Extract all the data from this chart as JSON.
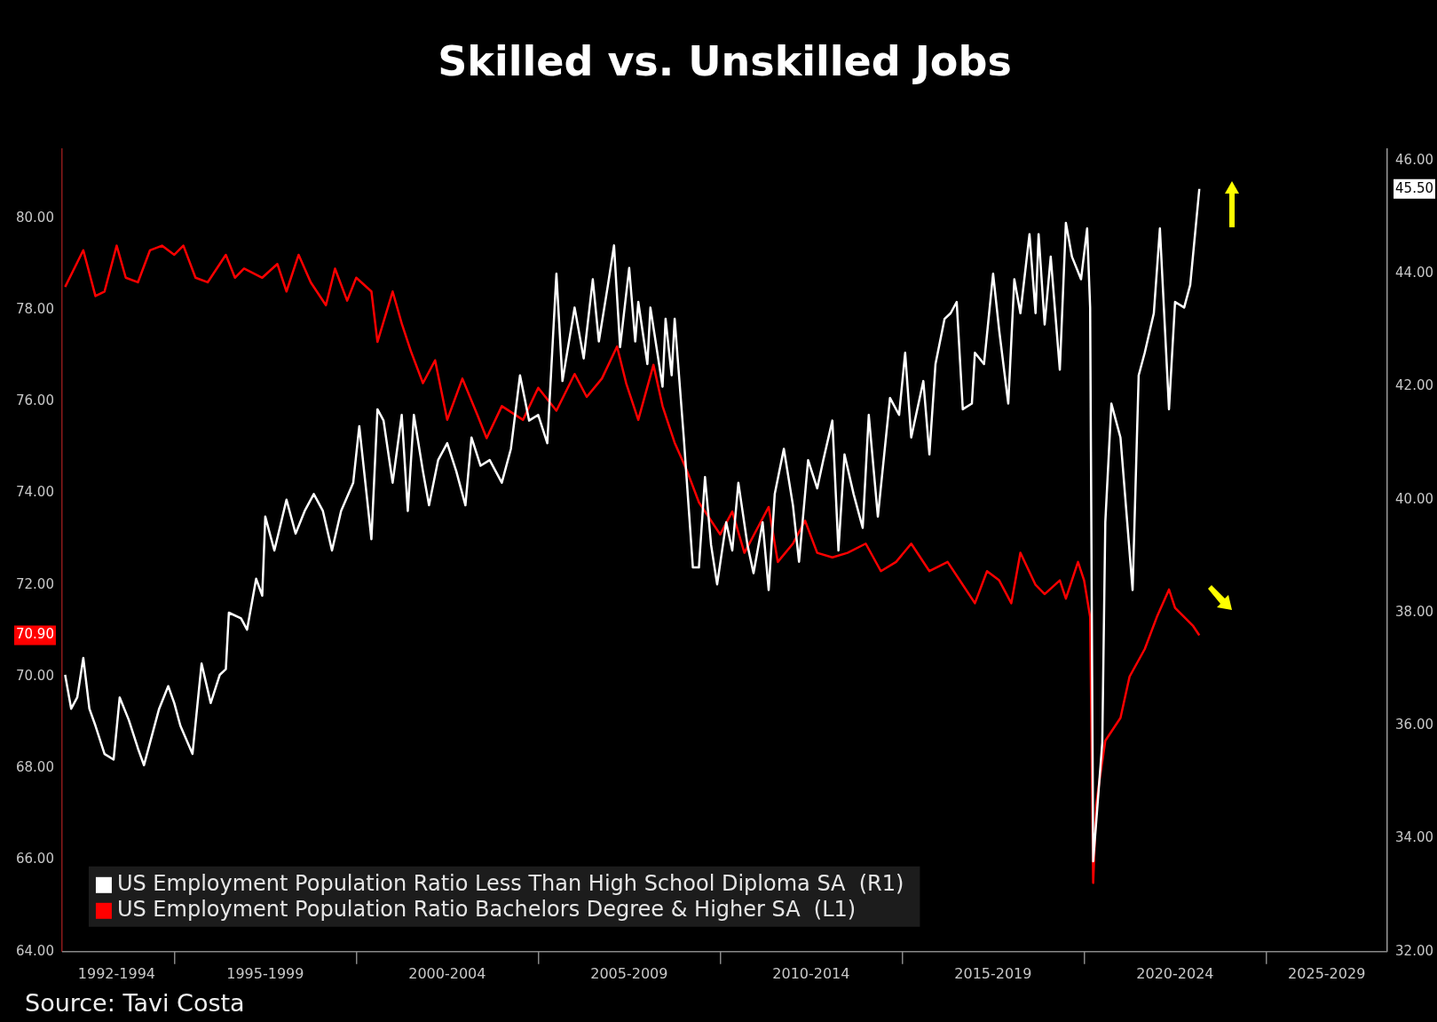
{
  "chart_data": {
    "type": "line",
    "title": "Skilled vs. Unskilled Jobs",
    "annotations": [
      "Source: Tavi Costa"
    ],
    "legend": "bottom left",
    "xlim": [
      "1991-12",
      "2028-05"
    ],
    "xticks": [
      {
        "value": "1993-06",
        "label": "1992-1994"
      },
      {
        "value": "1995-01",
        "label": null
      },
      {
        "value": "1997-07",
        "label": "1995-1999"
      },
      {
        "value": "2000-01",
        "label": null
      },
      {
        "value": "2002-07",
        "label": "2000-2004"
      },
      {
        "value": "2005-01",
        "label": null
      },
      {
        "value": "2007-07",
        "label": "2005-2009"
      },
      {
        "value": "2010-01",
        "label": null
      },
      {
        "value": "2012-07",
        "label": "2010-2014"
      },
      {
        "value": "2015-01",
        "label": null
      },
      {
        "value": "2017-07",
        "label": "2015-2019"
      },
      {
        "value": "2020-01",
        "label": null
      },
      {
        "value": "2022-07",
        "label": "2020-2024"
      },
      {
        "value": "2025-01",
        "label": null
      },
      {
        "value": "2026-09",
        "label": "2025-2029"
      }
    ],
    "ylim": [
      64,
      81.5
    ],
    "yticks": [
      {
        "value": 64,
        "label": "64.00"
      },
      {
        "value": 66,
        "label": "66.00"
      },
      {
        "value": 68,
        "label": "68.00"
      },
      {
        "value": 70,
        "label": "70.00"
      },
      {
        "value": 70.9,
        "label": "70.90"
      },
      {
        "value": 72,
        "label": "72.00"
      },
      {
        "value": 74,
        "label": "74.00"
      },
      {
        "value": 76,
        "label": "76.00"
      },
      {
        "value": 78,
        "label": "78.00"
      },
      {
        "value": 80,
        "label": "80.00"
      }
    ],
    "y2lim": [
      32,
      46.2
    ],
    "y2ticks": [
      {
        "value": 32,
        "label": "32.00"
      },
      {
        "value": 34,
        "label": "34.00"
      },
      {
        "value": 36,
        "label": "36.00"
      },
      {
        "value": 38,
        "label": "38.00"
      },
      {
        "value": 40,
        "label": "40.00"
      },
      {
        "value": 42,
        "label": "42.00"
      },
      {
        "value": 44,
        "label": "44.00"
      },
      {
        "value": 45.5,
        "label": "45.50"
      },
      {
        "value": 46,
        "label": "46.00"
      }
    ],
    "series": [
      {
        "name": "US Employment Population Ratio Less Than High School Diploma SA  (R1)",
        "color": "#ffffff",
        "axis": "y2",
        "x": [
          "1992-01",
          "1992-03",
          "1992-05",
          "1992-07",
          "1992-09",
          "1992-11",
          "1993-02",
          "1993-05",
          "1993-07",
          "1993-10",
          "1994-01",
          "1994-03",
          "1994-05",
          "1994-08",
          "1994-11",
          "1995-01",
          "1995-03",
          "1995-07",
          "1995-10",
          "1996-01",
          "1996-04",
          "1996-06",
          "1996-07",
          "1996-11",
          "1997-01",
          "1997-04",
          "1997-06",
          "1997-07",
          "1997-10",
          "1998-02",
          "1998-05",
          "1998-08",
          "1998-11",
          "1999-02",
          "1999-05",
          "1999-08",
          "1999-12",
          "2000-02",
          "2000-04",
          "2000-06",
          "2000-08",
          "2000-10",
          "2001-01",
          "2001-04",
          "2001-06",
          "2001-08",
          "2001-11",
          "2002-01",
          "2002-04",
          "2002-07",
          "2002-10",
          "2003-01",
          "2003-03",
          "2003-06",
          "2003-09",
          "2004-01",
          "2004-04",
          "2004-07",
          "2004-10",
          "2005-01",
          "2005-04",
          "2005-07",
          "2005-09",
          "2006-01",
          "2006-04",
          "2006-07",
          "2006-09",
          "2006-12",
          "2007-02",
          "2007-04",
          "2007-07",
          "2007-09",
          "2007-10",
          "2008-01",
          "2008-02",
          "2008-06",
          "2008-07",
          "2008-09",
          "2008-10",
          "2009-01",
          "2009-04",
          "2009-06",
          "2009-08",
          "2009-10",
          "2009-12",
          "2010-03",
          "2010-05",
          "2010-07",
          "2010-10",
          "2010-12",
          "2011-03",
          "2011-05",
          "2011-07",
          "2011-10",
          "2012-01",
          "2012-03",
          "2012-06",
          "2012-09",
          "2012-11",
          "2013-02",
          "2013-04",
          "2013-06",
          "2013-09",
          "2013-12",
          "2014-02",
          "2014-05",
          "2014-09",
          "2014-12",
          "2015-02",
          "2015-04",
          "2015-08",
          "2015-10",
          "2015-12",
          "2016-03",
          "2016-05",
          "2016-07",
          "2016-09",
          "2016-12",
          "2017-01",
          "2017-04",
          "2017-07",
          "2017-09",
          "2017-12",
          "2018-02",
          "2018-04",
          "2018-07",
          "2018-09",
          "2018-10",
          "2018-12",
          "2019-02",
          "2019-05",
          "2019-07",
          "2019-09",
          "2019-12",
          "2020-02",
          "2020-03",
          "2020-04",
          "2020-07",
          "2020-08",
          "2020-10",
          "2021-01",
          "2021-05",
          "2021-07",
          "2021-09",
          "2021-12",
          "2022-02",
          "2022-05",
          "2022-07",
          "2022-10",
          "2022-12",
          "2023-03"
        ],
        "values": [
          36.9,
          36.3,
          36.5,
          37.2,
          36.3,
          36.0,
          35.5,
          35.4,
          36.5,
          36.1,
          35.6,
          35.3,
          35.7,
          36.3,
          36.7,
          36.4,
          36.0,
          35.5,
          37.1,
          36.4,
          36.9,
          37.0,
          38.0,
          37.9,
          37.7,
          38.6,
          38.3,
          39.7,
          39.1,
          40.0,
          39.4,
          39.8,
          40.1,
          39.8,
          39.1,
          39.8,
          40.3,
          41.3,
          40.3,
          39.3,
          41.6,
          41.4,
          40.3,
          41.5,
          39.8,
          41.5,
          40.5,
          39.9,
          40.7,
          41.0,
          40.5,
          39.9,
          41.1,
          40.6,
          40.7,
          40.3,
          40.9,
          42.2,
          41.4,
          41.5,
          41.0,
          44.0,
          42.1,
          43.4,
          42.5,
          43.9,
          42.8,
          43.8,
          44.5,
          42.7,
          44.1,
          42.8,
          43.5,
          42.4,
          43.4,
          42.0,
          43.2,
          42.2,
          43.2,
          41.1,
          38.8,
          38.8,
          40.4,
          39.2,
          38.5,
          39.6,
          39.1,
          40.3,
          39.2,
          38.7,
          39.6,
          38.4,
          40.1,
          40.9,
          39.9,
          38.9,
          40.7,
          40.2,
          40.7,
          41.4,
          39.1,
          40.8,
          40.1,
          39.5,
          41.5,
          39.7,
          41.8,
          41.5,
          42.6,
          41.1,
          42.1,
          40.8,
          42.4,
          43.2,
          43.3,
          43.5,
          41.6,
          41.7,
          42.6,
          42.4,
          44.0,
          43.0,
          41.7,
          43.9,
          43.3,
          44.7,
          43.3,
          44.7,
          43.1,
          44.3,
          42.3,
          44.9,
          44.3,
          43.9,
          44.8,
          43.4,
          33.6,
          35.7,
          39.6,
          41.7,
          41.1,
          38.4,
          42.2,
          42.6,
          43.3,
          44.8,
          41.6,
          43.5,
          43.4,
          43.8,
          45.5
        ]
      },
      {
        "name": "US Employment Population Ratio Bachelors Degree & Higher SA  (L1)",
        "color": "#ff0000",
        "axis": "y",
        "x": [
          "1992-01",
          "1992-04",
          "1992-07",
          "1992-11",
          "1993-02",
          "1993-06",
          "1993-09",
          "1994-01",
          "1994-05",
          "1994-09",
          "1995-01",
          "1995-04",
          "1995-08",
          "1995-12",
          "1996-06",
          "1996-09",
          "1996-12",
          "1997-06",
          "1997-11",
          "1998-02",
          "1998-06",
          "1998-10",
          "1999-03",
          "1999-06",
          "1999-10",
          "2000-01",
          "2000-06",
          "2000-08",
          "2001-01",
          "2001-04",
          "2001-07",
          "2001-11",
          "2002-03",
          "2002-07",
          "2002-12",
          "2003-05",
          "2003-08",
          "2004-01",
          "2004-08",
          "2005-01",
          "2005-07",
          "2006-01",
          "2006-05",
          "2006-10",
          "2007-03",
          "2007-06",
          "2007-10",
          "2008-03",
          "2008-06",
          "2008-10",
          "2009-02",
          "2009-06",
          "2009-09",
          "2010-01",
          "2010-05",
          "2010-09",
          "2011-01",
          "2011-05",
          "2011-08",
          "2012-01",
          "2012-05",
          "2012-09",
          "2013-02",
          "2013-07",
          "2014-01",
          "2014-06",
          "2014-11",
          "2015-04",
          "2015-10",
          "2016-04",
          "2016-08",
          "2017-01",
          "2017-05",
          "2017-09",
          "2018-01",
          "2018-04",
          "2018-09",
          "2018-12",
          "2019-05",
          "2019-07",
          "2019-11",
          "2020-01",
          "2020-03",
          "2020-04",
          "2020-05",
          "2020-06",
          "2020-08",
          "2021-01",
          "2021-04",
          "2021-09",
          "2022-01",
          "2022-05",
          "2022-07",
          "2022-10",
          "2023-01",
          "2023-03"
        ],
        "values": [
          78.5,
          78.9,
          79.3,
          78.3,
          78.4,
          79.4,
          78.7,
          78.6,
          79.3,
          79.4,
          79.2,
          79.4,
          78.7,
          78.6,
          79.2,
          78.7,
          78.9,
          78.7,
          79.0,
          78.4,
          79.2,
          78.6,
          78.1,
          78.9,
          78.2,
          78.7,
          78.4,
          77.3,
          78.4,
          77.7,
          77.1,
          76.4,
          76.9,
          75.6,
          76.5,
          75.7,
          75.2,
          75.9,
          75.6,
          76.3,
          75.8,
          76.6,
          76.1,
          76.5,
          77.2,
          76.4,
          75.6,
          76.8,
          75.9,
          75.1,
          74.5,
          73.8,
          73.5,
          73.1,
          73.6,
          72.7,
          73.2,
          73.7,
          72.5,
          72.9,
          73.4,
          72.7,
          72.6,
          72.7,
          72.9,
          72.3,
          72.5,
          72.9,
          72.3,
          72.5,
          72.1,
          71.6,
          72.3,
          72.1,
          71.6,
          72.7,
          72.0,
          71.8,
          72.1,
          71.7,
          72.5,
          72.1,
          71.3,
          65.5,
          67.2,
          67.7,
          68.6,
          69.1,
          70.0,
          70.6,
          71.3,
          71.9,
          71.5,
          71.3,
          71.1,
          70.9
        ]
      }
    ]
  }
}
